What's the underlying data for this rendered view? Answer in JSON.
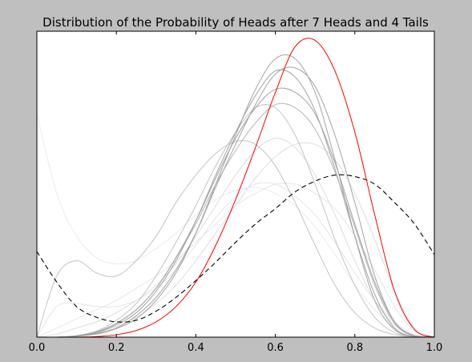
{
  "chart_data": {
    "type": "line",
    "title": "Distribution of the Probability of Heads after 7 Heads and 4 Tails",
    "xlabel": "",
    "ylabel": "",
    "xlim": [
      0.0,
      1.0
    ],
    "ylim": [
      0,
      1.0
    ],
    "x_ticks": [
      "0.0",
      "0.2",
      "0.4",
      "0.6",
      "0.8",
      "1.0"
    ],
    "y_ticks": [],
    "grid": false,
    "legend": "none",
    "x": [
      0.0,
      0.05,
      0.1,
      0.15,
      0.2,
      0.25,
      0.3,
      0.35,
      0.4,
      0.45,
      0.5,
      0.55,
      0.6,
      0.65,
      0.7,
      0.75,
      0.8,
      0.85,
      0.9,
      0.95,
      1.0
    ],
    "series": [
      {
        "style": "solid",
        "color": "#ff0000",
        "values": [
          0.0,
          0.0,
          0.0,
          0.002,
          0.008,
          0.022,
          0.05,
          0.1,
          0.18,
          0.3,
          0.45,
          0.62,
          0.8,
          0.95,
          0.97,
          0.87,
          0.67,
          0.4,
          0.15,
          0.025,
          0.0
        ]
      },
      {
        "style": "dashed",
        "color": "#000000",
        "values": [
          0.28,
          0.18,
          0.1,
          0.065,
          0.05,
          0.055,
          0.085,
          0.13,
          0.185,
          0.245,
          0.31,
          0.37,
          0.42,
          0.475,
          0.51,
          0.53,
          0.525,
          0.5,
          0.44,
          0.37,
          0.27
        ]
      },
      {
        "style": "solid",
        "color": "#a3a3a3",
        "values": [
          0.0,
          0.0,
          0.003,
          0.01,
          0.028,
          0.06,
          0.12,
          0.21,
          0.34,
          0.5,
          0.66,
          0.81,
          0.91,
          0.91,
          0.8,
          0.58,
          0.33,
          0.12,
          0.025,
          0.002,
          0.0
        ]
      },
      {
        "style": "solid",
        "color": "#a3a3a3",
        "values": [
          0.0,
          0.0,
          0.003,
          0.012,
          0.03,
          0.07,
          0.13,
          0.22,
          0.34,
          0.49,
          0.63,
          0.76,
          0.86,
          0.88,
          0.82,
          0.66,
          0.44,
          0.2,
          0.05,
          0.004,
          0.0
        ]
      },
      {
        "style": "solid",
        "color": "#a3a3a3",
        "values": [
          0.0,
          0.0,
          0.004,
          0.015,
          0.04,
          0.08,
          0.15,
          0.25,
          0.38,
          0.53,
          0.67,
          0.79,
          0.87,
          0.85,
          0.74,
          0.55,
          0.33,
          0.14,
          0.03,
          0.002,
          0.0
        ]
      },
      {
        "style": "solid",
        "color": "#a3a3a3",
        "values": [
          0.0,
          0.0,
          0.005,
          0.017,
          0.045,
          0.09,
          0.16,
          0.26,
          0.38,
          0.52,
          0.65,
          0.75,
          0.81,
          0.8,
          0.73,
          0.57,
          0.37,
          0.18,
          0.05,
          0.005,
          0.0
        ]
      },
      {
        "style": "solid",
        "color": "#b5b5b5",
        "values": [
          0.0,
          0.0,
          0.005,
          0.018,
          0.045,
          0.09,
          0.16,
          0.26,
          0.37,
          0.5,
          0.61,
          0.7,
          0.76,
          0.75,
          0.68,
          0.54,
          0.36,
          0.17,
          0.045,
          0.003,
          0.0
        ]
      },
      {
        "style": "solid",
        "color": "#c4c4c4",
        "values": [
          0.0,
          0.0,
          0.005,
          0.02,
          0.055,
          0.11,
          0.2,
          0.31,
          0.43,
          0.56,
          0.67,
          0.75,
          0.75,
          0.66,
          0.5,
          0.32,
          0.17,
          0.065,
          0.015,
          0.001,
          0.0
        ]
      },
      {
        "style": "solid",
        "color": "#c4c4c4",
        "values": [
          0.0,
          0.2,
          0.25,
          0.21,
          0.2,
          0.25,
          0.33,
          0.44,
          0.53,
          0.6,
          0.64,
          0.63,
          0.56,
          0.44,
          0.3,
          0.17,
          0.08,
          0.03,
          0.008,
          0.001,
          0.0
        ]
      },
      {
        "style": "solid",
        "color": "#dedede",
        "values": [
          0.0,
          0.01,
          0.03,
          0.05,
          0.08,
          0.12,
          0.17,
          0.24,
          0.33,
          0.43,
          0.53,
          0.61,
          0.65,
          0.62,
          0.53,
          0.4,
          0.25,
          0.12,
          0.04,
          0.006,
          0.0
        ]
      },
      {
        "style": "solid",
        "color": "#dedede",
        "values": [
          0.0,
          0.0,
          0.004,
          0.014,
          0.035,
          0.065,
          0.11,
          0.17,
          0.25,
          0.34,
          0.43,
          0.52,
          0.59,
          0.63,
          0.63,
          0.58,
          0.47,
          0.32,
          0.15,
          0.03,
          0.0
        ]
      },
      {
        "style": "solid",
        "color": "#e6e6e6",
        "values": [
          0.0,
          0.1,
          0.11,
          0.1,
          0.1,
          0.12,
          0.16,
          0.22,
          0.3,
          0.39,
          0.46,
          0.5,
          0.5,
          0.46,
          0.4,
          0.31,
          0.21,
          0.12,
          0.05,
          0.01,
          0.0
        ]
      },
      {
        "style": "solid",
        "color": "#e6e6e6",
        "values": [
          0.0,
          0.03,
          0.06,
          0.09,
          0.12,
          0.16,
          0.2,
          0.25,
          0.31,
          0.37,
          0.43,
          0.47,
          0.5,
          0.5,
          0.47,
          0.42,
          0.33,
          0.22,
          0.1,
          0.02,
          0.0
        ]
      },
      {
        "style": "solid",
        "color": "#ebebeb",
        "values": [
          0.73,
          0.47,
          0.33,
          0.26,
          0.24,
          0.25,
          0.29,
          0.34,
          0.4,
          0.45,
          0.48,
          0.49,
          0.47,
          0.43,
          0.36,
          0.27,
          0.17,
          0.09,
          0.03,
          0.005,
          0.0
        ]
      }
    ]
  }
}
